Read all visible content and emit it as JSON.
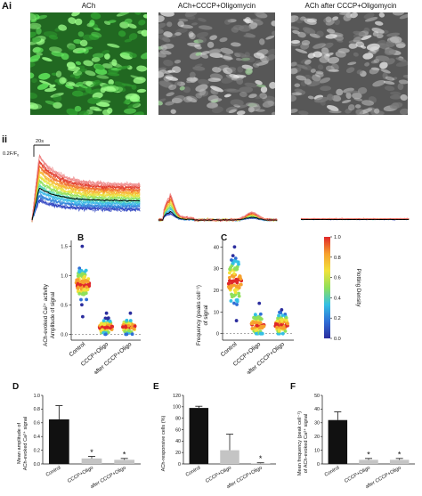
{
  "panel_labels": {
    "ai": "Ai",
    "ii": "ii",
    "b": "B",
    "c": "C",
    "d": "D",
    "e": "E",
    "f": "F"
  },
  "images": [
    {
      "title": "ACh",
      "tint": "green"
    },
    {
      "title": "ACh+CCCP+Oligomycin",
      "tint": "gray"
    },
    {
      "title": "ACh after CCCP+Oligomycin",
      "tint": "gray"
    }
  ],
  "traces": {
    "scale_x": "20s",
    "scale_y": "0.2F/F",
    "scale_y_sub": "0",
    "colors": [
      "#2a3fbf",
      "#2f7fd9",
      "#36b7e6",
      "#4fd6b0",
      "#8fe05a",
      "#e6e23a",
      "#f7b52e",
      "#f2712a",
      "#e23b2a",
      "#ef8a8a"
    ]
  },
  "colorbar": {
    "label": "Plotting Density",
    "ticks": [
      "0.0",
      "0.2",
      "0.4",
      "0.6",
      "0.8",
      "1.0"
    ],
    "stops": [
      "#2b2d9e",
      "#2f6fd6",
      "#34c0e4",
      "#8fe05a",
      "#f2e23a",
      "#f7a12e",
      "#e0282a"
    ]
  },
  "chart_data": [
    {
      "id": "B",
      "type": "scatter",
      "ylabel": "ACh-evoked Ca²⁺ activity",
      "ylabel2": "Amplitude of signal",
      "categories": [
        "Control",
        "CCCP+Oligo",
        "after CCCP+Oligo"
      ],
      "ylim": [
        -0.1,
        1.6
      ],
      "yticks": [
        "0.0",
        "0.5",
        "1.0",
        "1.5"
      ],
      "ytick_values": [
        0,
        0.5,
        1.0,
        1.5
      ],
      "reference_line": 0,
      "groups": [
        {
          "center": 0.85,
          "spread": 0.13,
          "min": 0.3,
          "max": 1.5,
          "n": 90
        },
        {
          "center": 0.12,
          "spread": 0.06,
          "min": 0.0,
          "max": 0.36,
          "n": 70
        },
        {
          "center": 0.13,
          "spread": 0.06,
          "min": 0.0,
          "max": 0.36,
          "n": 70
        }
      ]
    },
    {
      "id": "C",
      "type": "scatter",
      "ylabel": "Frequency (peaks cell⁻¹)",
      "ylabel2": "of signal",
      "categories": [
        "Control",
        "CCCP+Oligo",
        "after CCCP+Oligo"
      ],
      "ylim": [
        -3,
        43
      ],
      "yticks": [
        "0",
        "10",
        "20",
        "30",
        "40"
      ],
      "ytick_values": [
        0,
        10,
        20,
        30,
        40
      ],
      "reference_line": 0,
      "groups": [
        {
          "center": 24,
          "spread": 5,
          "min": 6,
          "max": 40,
          "n": 90
        },
        {
          "center": 4,
          "spread": 2.5,
          "min": 0,
          "max": 14,
          "n": 70
        },
        {
          "center": 4,
          "spread": 2.5,
          "min": 0,
          "max": 11,
          "n": 70
        }
      ]
    },
    {
      "id": "D",
      "type": "bar",
      "ylabel": "Mean amplitude of",
      "ylabel2": "ACh-evoked Ca²⁺ signal",
      "categories": [
        "Control",
        "CCCP+Oligo",
        "after CCCP+Oligo"
      ],
      "values": [
        0.65,
        0.08,
        0.06
      ],
      "errors": [
        0.2,
        0.03,
        0.02
      ],
      "colors": [
        "#111111",
        "#c4c4c4",
        "#c4c4c4"
      ],
      "ylim": [
        0,
        1.0
      ],
      "yticks": [
        "0.0",
        "0.2",
        "0.4",
        "0.6",
        "0.8",
        "1.0"
      ],
      "ytick_values": [
        0,
        0.2,
        0.4,
        0.6,
        0.8,
        1.0
      ],
      "significance": [
        "",
        "*",
        "*"
      ]
    },
    {
      "id": "E",
      "type": "bar",
      "ylabel": "ACh-responsive cells (%)",
      "ylabel2": "",
      "categories": [
        "Control",
        "CCCP+Oligo",
        "after CCCP+Oligo"
      ],
      "values": [
        98,
        24,
        1
      ],
      "errors": [
        3,
        28,
        1
      ],
      "colors": [
        "#111111",
        "#c4c4c4",
        "#c4c4c4"
      ],
      "ylim": [
        0,
        120
      ],
      "yticks": [
        "0",
        "20",
        "40",
        "60",
        "80",
        "100",
        "120"
      ],
      "ytick_values": [
        0,
        20,
        40,
        60,
        80,
        100,
        120
      ],
      "significance": [
        "",
        "",
        "*"
      ]
    },
    {
      "id": "F",
      "type": "bar",
      "ylabel": "Mean frequency (peak cell⁻¹)",
      "ylabel2": "of ACh-evoked Ca²⁺ signal",
      "categories": [
        "Control",
        "CCCP+Oligo",
        "after CCCP+Oligo"
      ],
      "values": [
        32,
        3,
        3
      ],
      "errors": [
        6,
        1,
        1
      ],
      "colors": [
        "#111111",
        "#c4c4c4",
        "#c4c4c4"
      ],
      "ylim": [
        0,
        50
      ],
      "yticks": [
        "0",
        "10",
        "20",
        "30",
        "40",
        "50"
      ],
      "ytick_values": [
        0,
        10,
        20,
        30,
        40,
        50
      ],
      "significance": [
        "",
        "*",
        "*"
      ]
    }
  ]
}
